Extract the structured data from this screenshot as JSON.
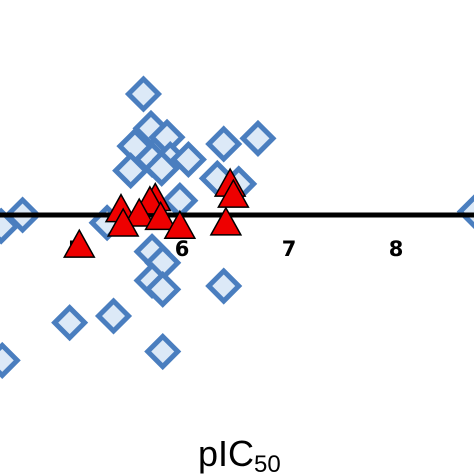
{
  "chart_data": {
    "type": "scatter",
    "xlabel_main": "pIC",
    "xlabel_sub": "50",
    "x_ticks": [
      "5",
      "6",
      "7",
      "8"
    ],
    "xlim": [
      4.3,
      8.7
    ],
    "ylim": [
      -1.6,
      1.2
    ],
    "axis_y": 0,
    "grid": false,
    "colors": {
      "diamond_fill": "#dce9f7",
      "diamond_stroke": "#4a7ebf",
      "triangle_fill": "#ee0000",
      "triangle_stroke": "#000000",
      "axis": "#000000"
    },
    "series": [
      {
        "marker": "diamond",
        "points": [
          [
            5.64,
            1.09
          ],
          [
            5.71,
            0.78
          ],
          [
            5.86,
            0.7
          ],
          [
            6.71,
            0.69
          ],
          [
            5.56,
            0.62
          ],
          [
            6.39,
            0.64
          ],
          [
            5.72,
            0.5
          ],
          [
            5.89,
            0.5
          ],
          [
            6.06,
            0.5
          ],
          [
            5.52,
            0.4
          ],
          [
            5.81,
            0.42
          ],
          [
            6.53,
            0.28
          ],
          [
            6.33,
            0.33
          ],
          [
            5.98,
            0.13
          ],
          [
            4.51,
            0.0
          ],
          [
            4.31,
            -0.1
          ],
          [
            5.3,
            -0.07
          ],
          [
            5.72,
            -0.33
          ],
          [
            5.82,
            -0.43
          ],
          [
            5.72,
            -0.59
          ],
          [
            5.82,
            -0.67
          ],
          [
            6.39,
            -0.64
          ],
          [
            5.36,
            -0.91
          ],
          [
            4.95,
            -0.97
          ],
          [
            5.82,
            -1.23
          ],
          [
            4.32,
            -1.31
          ],
          [
            8.74,
            0.03
          ]
        ]
      },
      {
        "marker": "triangle",
        "points": [
          [
            6.45,
            0.28
          ],
          [
            6.48,
            0.18
          ],
          [
            5.75,
            0.15
          ],
          [
            5.7,
            0.12
          ],
          [
            5.43,
            0.05
          ],
          [
            5.6,
            0.01
          ],
          [
            5.8,
            -0.02
          ],
          [
            5.45,
            -0.08
          ],
          [
            5.98,
            -0.1
          ],
          [
            6.41,
            -0.07
          ],
          [
            5.04,
            -0.27
          ]
        ]
      }
    ]
  }
}
